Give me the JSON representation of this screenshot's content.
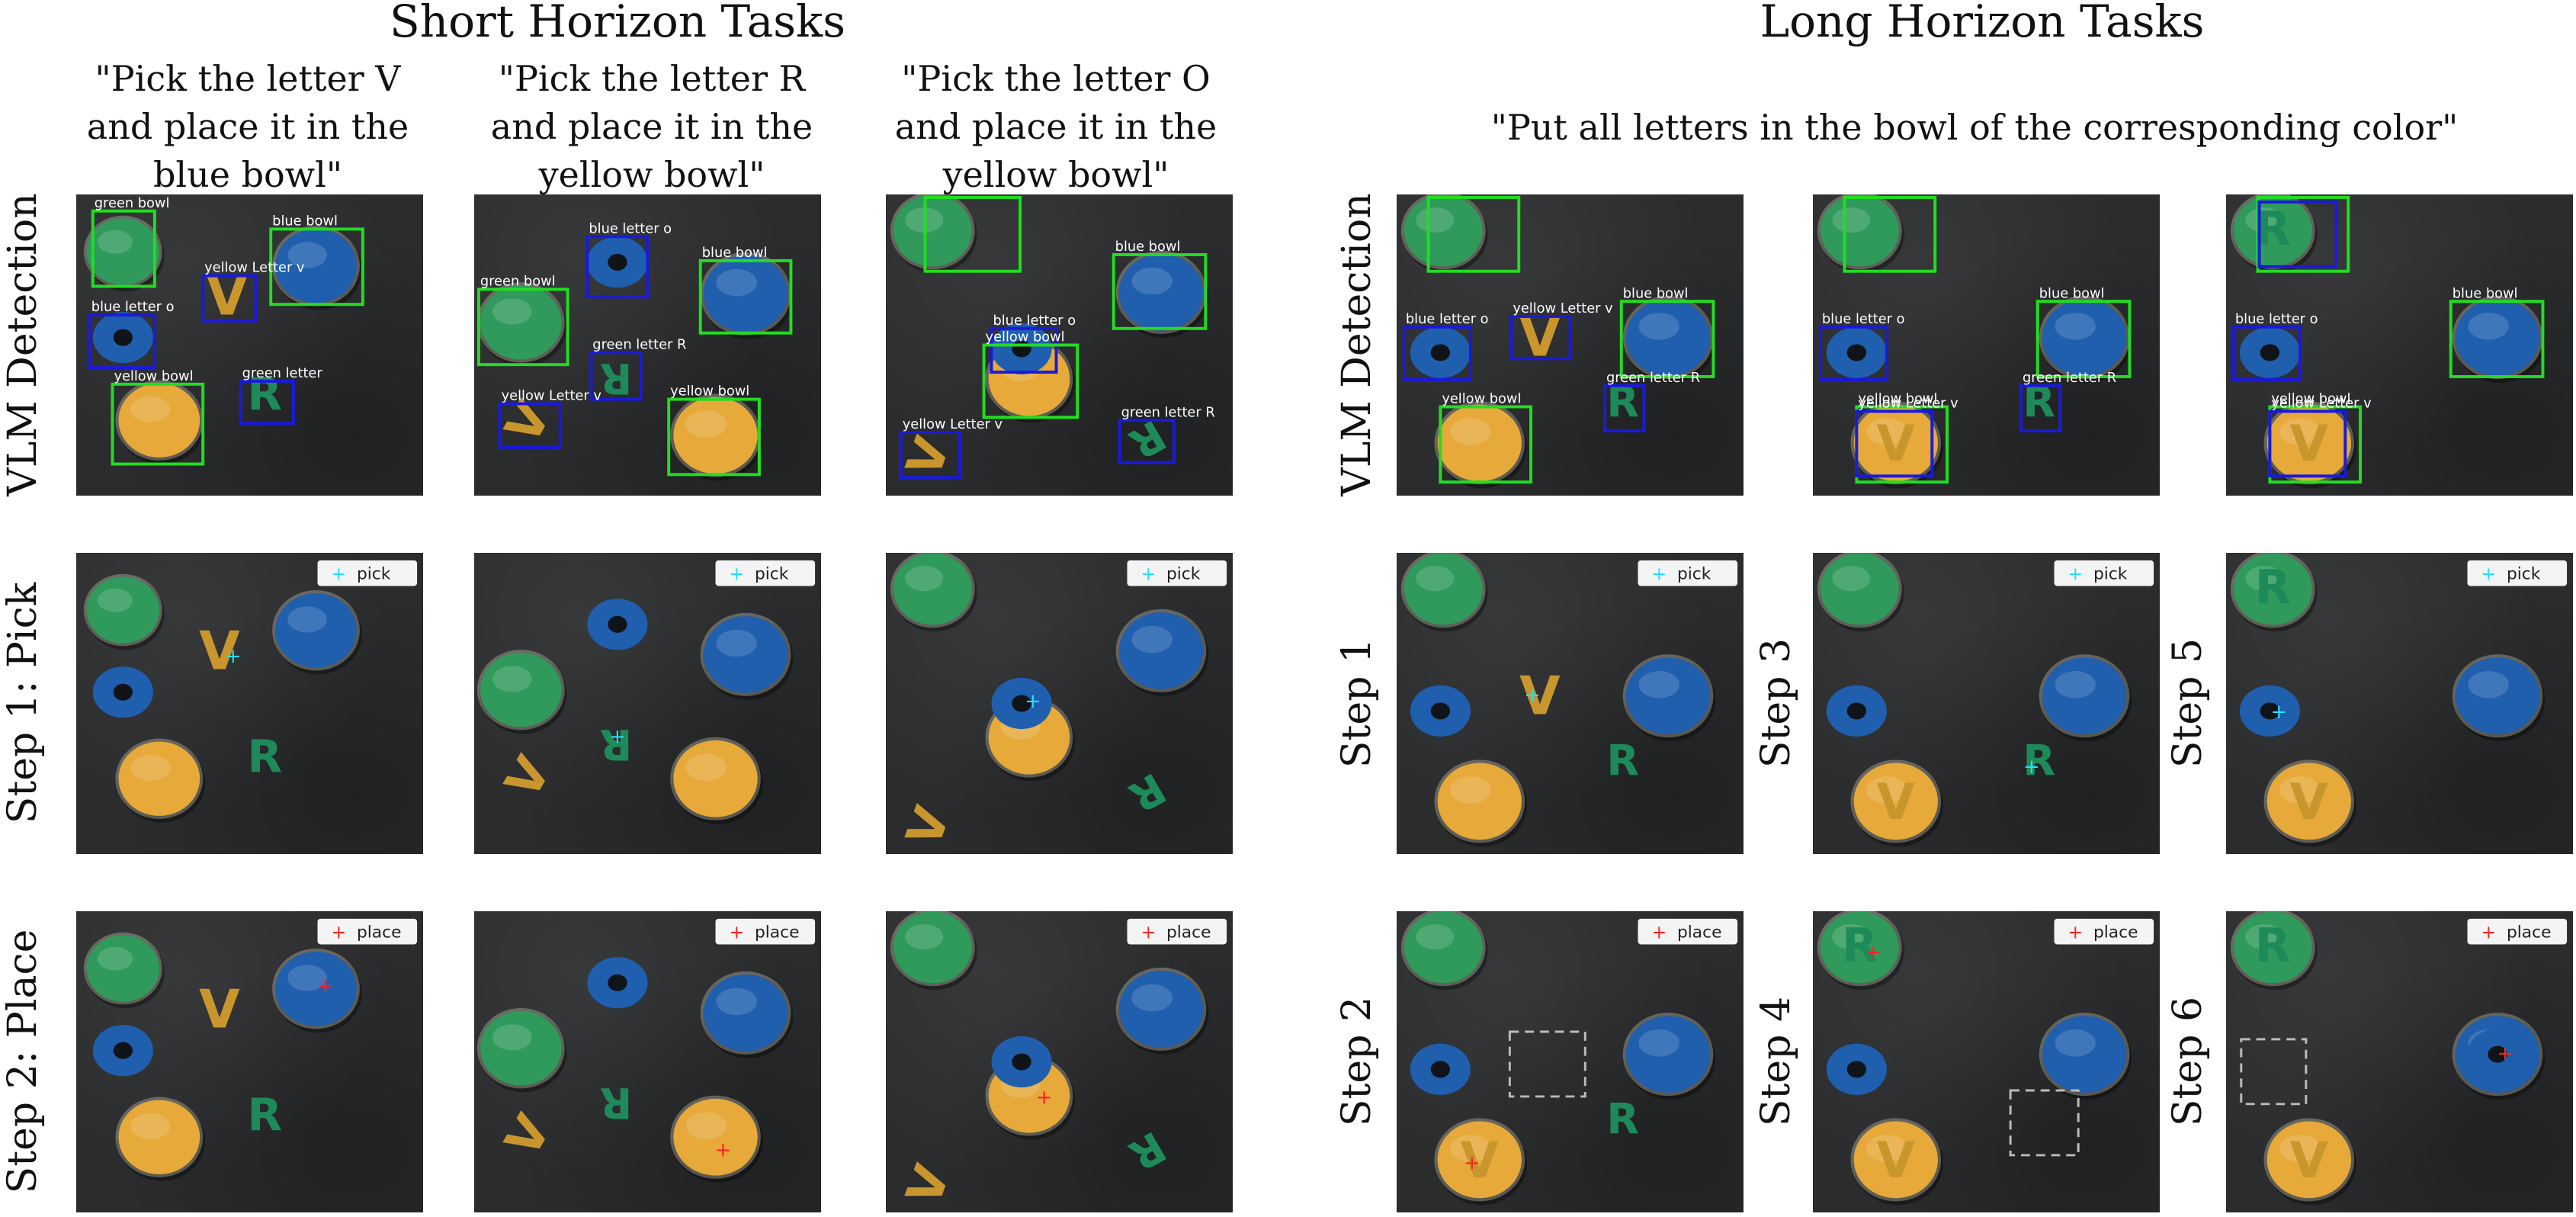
{
  "short": {
    "title": "Short Horizon Tasks",
    "instructions": [
      {
        "line1": "\"Pick the letter V",
        "line2": "and place it in the",
        "line3": "blue bowl\""
      },
      {
        "line1": "\"Pick the letter R",
        "line2": "and place it in the",
        "line3": "yellow bowl\""
      },
      {
        "line1": "\"Pick the letter O",
        "line2": "and place it in the",
        "line3": "yellow bowl\""
      }
    ],
    "row_labels": [
      "VLM Detection",
      "Step 1: Pick",
      "Step 2: Place"
    ]
  },
  "long": {
    "title": "Long Horizon Tasks",
    "instruction": "\"Put all letters in the bowl of the corresponding color\"",
    "row_label": "VLM Detection",
    "step_labels": [
      "Step 1",
      "Step 3",
      "Step 5",
      "Step 2",
      "Step 4",
      "Step 6"
    ]
  },
  "badges": {
    "pick": "pick",
    "place": "place"
  },
  "detection_labels": {
    "green_bowl": "green bowl",
    "blue_bowl": "blue bowl",
    "yellow_bowl": "yellow bowl",
    "blue_letter_o": "blue letter o",
    "yellow_letter_v": "yellow Letter v",
    "green_letter_r": "green letter R",
    "green_letter": "green letter"
  },
  "letters": {
    "v": "V",
    "r": "R"
  },
  "colors": {
    "bowl_green": "#2f9a5c",
    "bowl_blue": "#1f5fae",
    "bowl_yellow": "#e6a93a",
    "letter_yellow": "#c9962e",
    "letter_green": "#1e8a5a",
    "box_green": "#22dd22",
    "box_blue": "#1a1adc",
    "pick_marker": "#22e0ff",
    "place_marker": "#ff2222"
  }
}
